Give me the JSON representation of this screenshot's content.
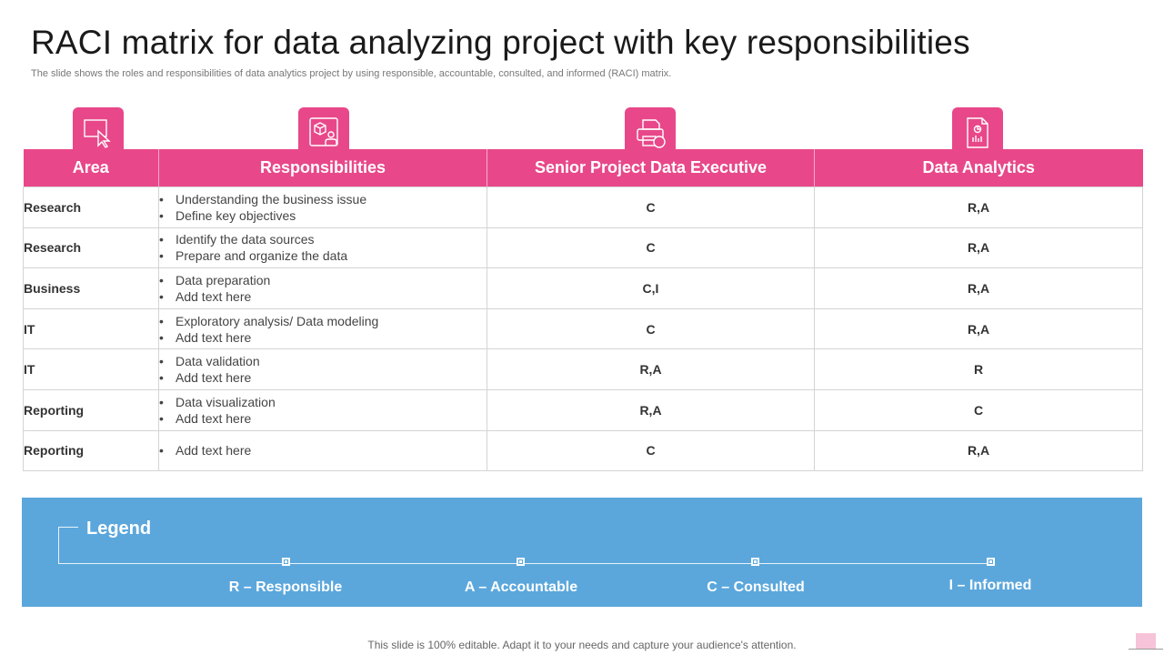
{
  "title": "RACI matrix for data analyzing project with key responsibilities",
  "subtitle": "The slide shows the roles and responsibilities of data analytics project by using responsible, accountable, consulted, and informed (RACI) matrix.",
  "colors": {
    "accent": "#e8488a",
    "legend_bg": "#5ba7dc"
  },
  "icons": [
    "cursor-screen-icon",
    "user-cube-icon",
    "printer-icon",
    "document-chart-icon"
  ],
  "table": {
    "headers": [
      "Area",
      "Responsibilities",
      "Senior Project Data Executive",
      "Data Analytics"
    ],
    "rows": [
      {
        "area": "Research",
        "responsibilities": [
          "Understanding the business issue",
          "Define key objectives"
        ],
        "executive": "C",
        "analytics": "R,A"
      },
      {
        "area": "Research",
        "responsibilities": [
          "Identify the data sources",
          "Prepare and organize the data"
        ],
        "executive": "C",
        "analytics": "R,A"
      },
      {
        "area": "Business",
        "responsibilities": [
          "Data preparation",
          "Add text here"
        ],
        "executive": "C,I",
        "analytics": "R,A"
      },
      {
        "area": "IT",
        "responsibilities": [
          "Exploratory analysis/ Data modeling",
          "Add text here"
        ],
        "executive": "C",
        "analytics": "R,A"
      },
      {
        "area": "IT",
        "responsibilities": [
          "Data validation",
          "Add text here"
        ],
        "executive": "R,A",
        "analytics": "R"
      },
      {
        "area": "Reporting",
        "responsibilities": [
          "Data visualization",
          "Add text here"
        ],
        "executive": "R,A",
        "analytics": "C"
      },
      {
        "area": "Reporting",
        "responsibilities": [
          "Add text here"
        ],
        "executive": "C",
        "analytics": "R,A"
      }
    ]
  },
  "legend": {
    "title": "Legend",
    "items": [
      "R – Responsible",
      "A – Accountable",
      "C – Consulted",
      "I – Informed"
    ]
  },
  "footer": "This slide is 100% editable. Adapt it to your needs and capture your audience's attention."
}
